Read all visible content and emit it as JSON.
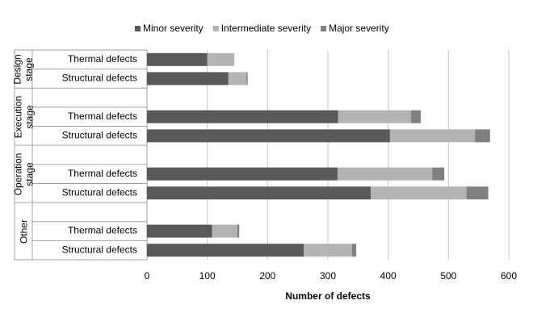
{
  "chart_data": {
    "type": "bar",
    "orientation": "horizontal",
    "stacked": true,
    "x_label": "Number of defects",
    "groups": [
      {
        "name": "Design stage",
        "categories": [
          "Thermal defects",
          "Structural defects"
        ]
      },
      {
        "name": "Execution stage",
        "categories": [
          "Thermal defects",
          "Structural defects"
        ]
      },
      {
        "name": "Operation stage",
        "categories": [
          "Thermal defects",
          "Structural defects"
        ]
      },
      {
        "name": "Other",
        "categories": [
          "Thermal defects",
          "Structural defects"
        ]
      }
    ],
    "series": [
      {
        "name": "Minor severity",
        "color": "#595959",
        "values": [
          100,
          135,
          317,
          403,
          316,
          371,
          108,
          260
        ]
      },
      {
        "name": "Intermediate severity",
        "color": "#b3b3b3",
        "values": [
          45,
          30,
          121,
          141,
          157,
          159,
          42,
          80
        ]
      },
      {
        "name": "Major severity",
        "color": "#808080",
        "values": [
          0,
          2,
          16,
          25,
          20,
          36,
          3,
          7
        ]
      }
    ],
    "xlim": [
      0,
      600
    ],
    "xticks": [
      0,
      100,
      200,
      300,
      400,
      500,
      600
    ],
    "grid": true,
    "legend": "top"
  }
}
